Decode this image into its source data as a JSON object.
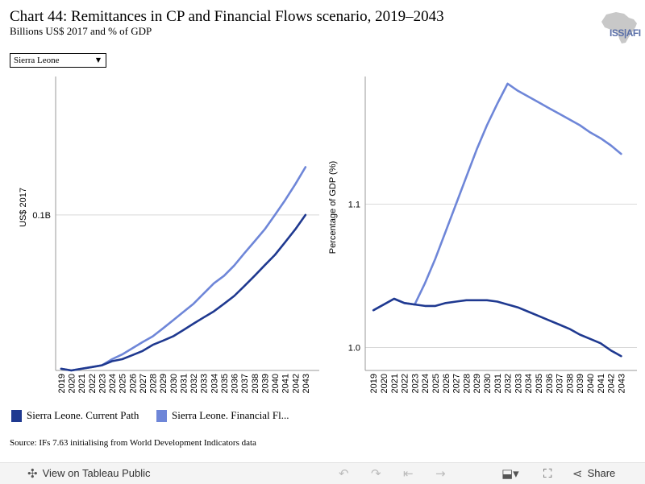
{
  "title": "Chart 44: Remittances in CP and Financial Flows scenario, 2019–2043",
  "subtitle": "Billions US$ 2017 and % of GDP",
  "logo_text": "ISS|AFI",
  "dropdown": {
    "selected": "Sierra Leone"
  },
  "legend": [
    {
      "label": "Sierra Leone. Current Path",
      "color": "#1f3990"
    },
    {
      "label": "Sierra Leone. Financial Fl...",
      "color": "#6e86d8"
    }
  ],
  "source": "Source: IFs 7.63 initialising from World Development Indicators data",
  "toolbar": {
    "view_label": "View on Tableau Public",
    "share_label": "Share",
    "icons": [
      "tableau-icon",
      "undo-icon",
      "redo-icon",
      "revert-icon",
      "forward-icon",
      "download-icon",
      "fullscreen-icon",
      "share-icon"
    ]
  },
  "chart_data": [
    {
      "type": "line",
      "ylabel": "US$ 2017",
      "yticks": [
        {
          "value": 0.1,
          "label": "0.1B"
        }
      ],
      "ylim": [
        0.0545,
        0.1405
      ],
      "categories": [
        "2019",
        "2020",
        "2021",
        "2022",
        "2023",
        "2024",
        "2025",
        "2026",
        "2027",
        "2028",
        "2029",
        "2030",
        "2031",
        "2032",
        "2033",
        "2034",
        "2035",
        "2036",
        "2037",
        "2038",
        "2039",
        "2040",
        "2041",
        "2042",
        "2043"
      ],
      "x_tick_labels": [
        "2019",
        "2020",
        "2021",
        "2022",
        "2023",
        "2024",
        "2025",
        "2026",
        "2027",
        "2028",
        "2029",
        "2030",
        "2031",
        "2032",
        "2033",
        "2034",
        "2035",
        "2036",
        "2037",
        "2038",
        "2039",
        "2040",
        "2041",
        "2042",
        "2043"
      ],
      "grid": true,
      "series": [
        {
          "name": "Sierra Leone. Current Path",
          "color": "#1f3990",
          "values": [
            0.055,
            0.0545,
            0.055,
            0.0555,
            0.056,
            0.0572,
            0.0578,
            0.059,
            0.0602,
            0.062,
            0.0632,
            0.0645,
            0.0663,
            0.0682,
            0.07,
            0.0718,
            0.074,
            0.0763,
            0.0792,
            0.0822,
            0.0853,
            0.0883,
            0.092,
            0.0958,
            0.1
          ]
        },
        {
          "name": "Sierra Leone. Financial Fl...",
          "color": "#6e86d8",
          "values": [
            0.055,
            0.0545,
            0.055,
            0.0555,
            0.056,
            0.0578,
            0.0592,
            0.061,
            0.0628,
            0.0645,
            0.0668,
            0.0692,
            0.0716,
            0.074,
            0.077,
            0.08,
            0.0822,
            0.0852,
            0.0888,
            0.0923,
            0.0958,
            0.1,
            0.1043,
            0.109,
            0.114
          ]
        }
      ]
    },
    {
      "type": "line",
      "ylabel": "Percentage of GDP (%)",
      "yticks": [
        {
          "value": 1.0,
          "label": "1.0"
        },
        {
          "value": 1.1,
          "label": "1.1"
        }
      ],
      "ylim": [
        0.984,
        1.189
      ],
      "categories": [
        "2019",
        "2020",
        "2021",
        "2022",
        "2023",
        "2024",
        "2025",
        "2026",
        "2027",
        "2028",
        "2029",
        "2030",
        "2031",
        "2032",
        "2033",
        "2034",
        "2035",
        "2036",
        "2037",
        "2038",
        "2039",
        "2040",
        "2041",
        "2042",
        "2043"
      ],
      "x_tick_labels": [
        "2019",
        "2020",
        "2021",
        "2022",
        "2023",
        "2024",
        "2025",
        "2026",
        "2027",
        "2028",
        "2029",
        "2030",
        "2031",
        "2032",
        "2033",
        "2034",
        "2035",
        "2036",
        "2037",
        "2038",
        "2039",
        "2040",
        "2041",
        "2042",
        "2043"
      ],
      "grid": true,
      "series": [
        {
          "name": "Sierra Leone. Current Path",
          "color": "#1f3990",
          "values": [
            1.026,
            1.03,
            1.034,
            1.031,
            1.03,
            1.029,
            1.029,
            1.031,
            1.032,
            1.033,
            1.033,
            1.033,
            1.032,
            1.03,
            1.028,
            1.025,
            1.022,
            1.019,
            1.016,
            1.013,
            1.009,
            1.006,
            1.003,
            0.998,
            0.994
          ]
        },
        {
          "name": "Sierra Leone. Financial Fl...",
          "color": "#6e86d8",
          "values": [
            1.026,
            1.03,
            1.034,
            1.031,
            1.03,
            1.045,
            1.062,
            1.081,
            1.1,
            1.119,
            1.138,
            1.155,
            1.17,
            1.184,
            1.179,
            1.175,
            1.171,
            1.167,
            1.163,
            1.159,
            1.155,
            1.15,
            1.146,
            1.141,
            1.135
          ]
        }
      ]
    }
  ]
}
